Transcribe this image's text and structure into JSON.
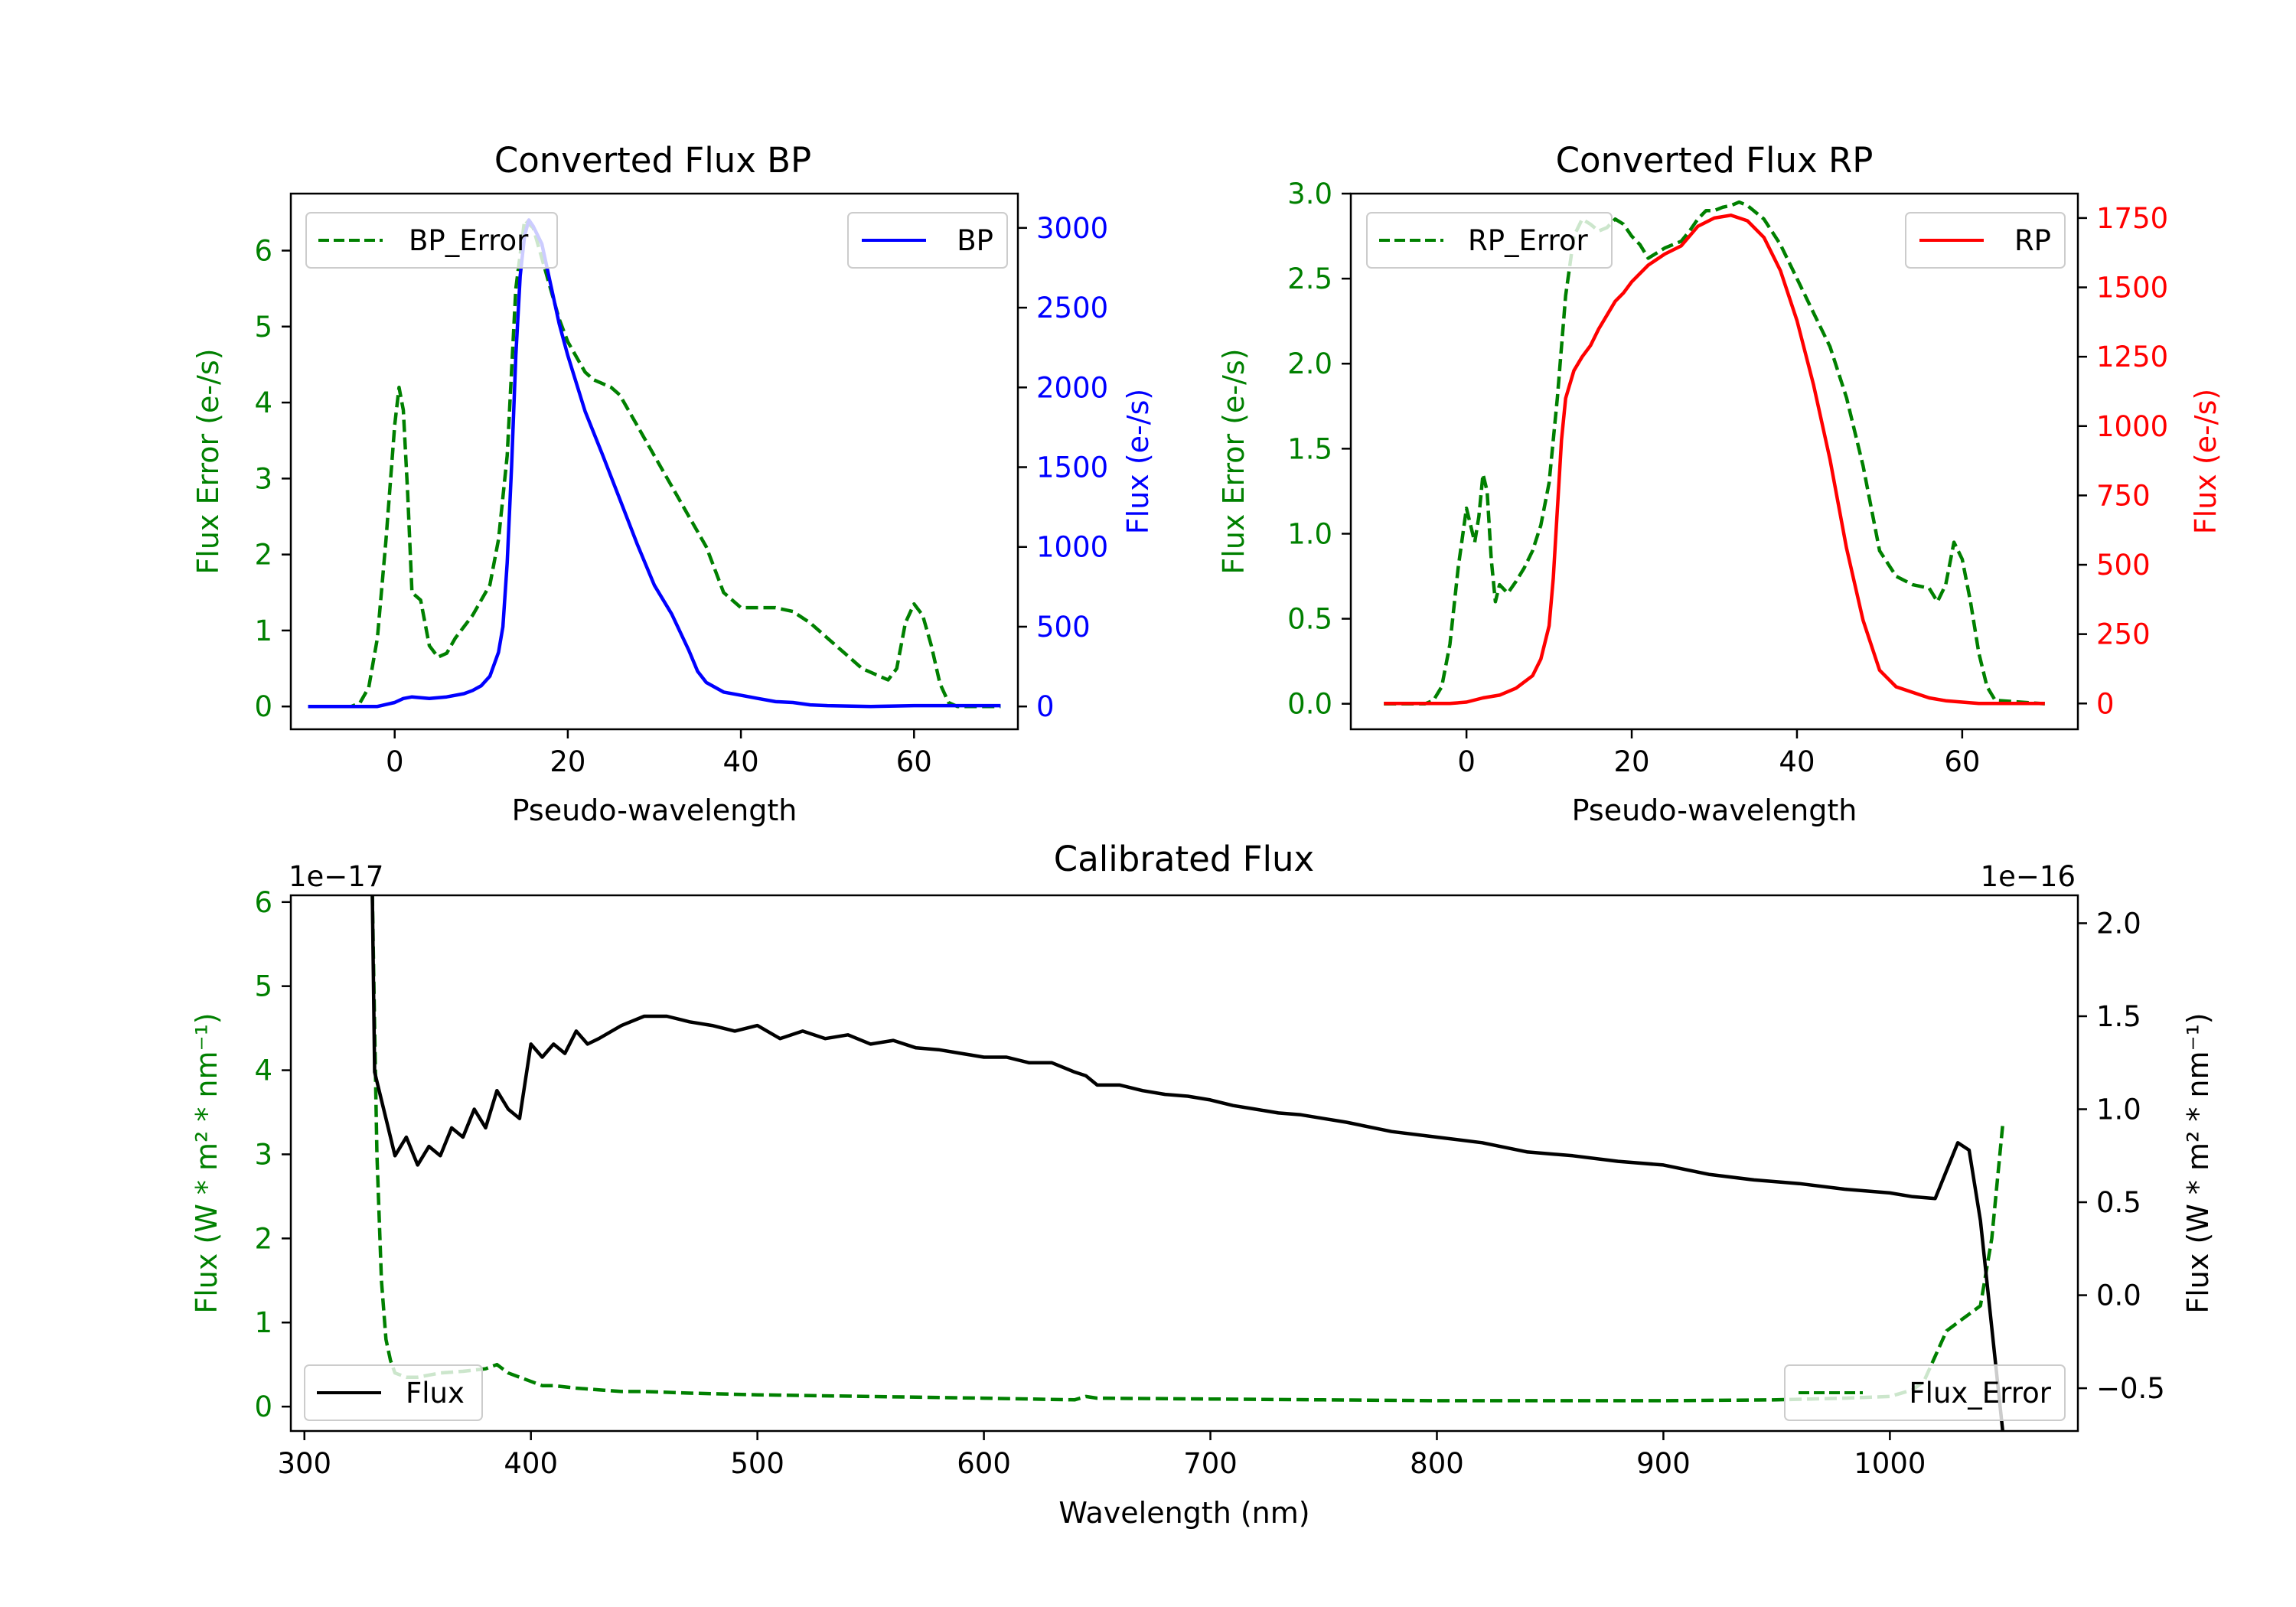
{
  "colors": {
    "green": "#008000",
    "blue": "#0000ff",
    "red": "#ff0000",
    "black": "#000000"
  },
  "chart_data": [
    {
      "type": "line",
      "title": "Converted Flux BP",
      "xlabel": "Pseudo-wavelength",
      "ylabel_left": "Flux Error (e-/s)",
      "ylabel_right": "Flux (e-/s)",
      "xlim": [
        -12,
        72
      ],
      "ylim_left": [
        -0.3,
        6.75
      ],
      "ylim_right": [
        -143,
        3215
      ],
      "x_ticks": [
        "0",
        "20",
        "40",
        "60"
      ],
      "y_left_ticks": [
        "0",
        "1",
        "2",
        "3",
        "4",
        "5",
        "6"
      ],
      "y_right_ticks": [
        "0",
        "500",
        "1000",
        "1500",
        "2000",
        "2500",
        "3000"
      ],
      "legend_left": "BP_Error",
      "legend_right": "BP",
      "series": [
        {
          "name": "BP_Error",
          "axis": "left",
          "color": "green",
          "dash": true,
          "x": [
            -10,
            -5,
            -4,
            -3,
            -2,
            -1,
            0,
            0.5,
            1,
            1.5,
            2,
            3,
            4,
            5,
            6,
            7,
            8,
            9,
            10,
            11,
            12,
            13,
            14,
            15,
            16,
            17,
            18,
            19,
            20,
            21,
            22,
            23,
            24,
            25,
            26,
            27,
            28,
            30,
            32,
            34,
            36,
            37,
            38,
            40,
            42,
            44,
            46,
            48,
            50,
            52,
            54,
            56,
            57,
            58,
            59,
            60,
            61,
            62,
            63,
            64,
            65,
            70
          ],
          "y": [
            0,
            0,
            0.05,
            0.25,
            0.9,
            2.2,
            3.7,
            4.2,
            3.9,
            2.8,
            1.5,
            1.4,
            0.8,
            0.65,
            0.7,
            0.9,
            1.05,
            1.2,
            1.4,
            1.6,
            2.2,
            3.3,
            5.5,
            6.4,
            6.3,
            5.9,
            5.5,
            5.1,
            4.8,
            4.6,
            4.4,
            4.3,
            4.25,
            4.2,
            4.1,
            3.9,
            3.7,
            3.3,
            2.9,
            2.5,
            2.1,
            1.8,
            1.5,
            1.3,
            1.3,
            1.3,
            1.25,
            1.1,
            0.9,
            0.7,
            0.5,
            0.4,
            0.35,
            0.5,
            1.1,
            1.35,
            1.2,
            0.8,
            0.3,
            0.05,
            0,
            0
          ]
        },
        {
          "name": "BP",
          "axis": "right",
          "color": "blue",
          "dash": false,
          "x": [
            -10,
            -2,
            0,
            1,
            2,
            3,
            4,
            6,
            8,
            9,
            10,
            11,
            12,
            12.5,
            13,
            13.5,
            14,
            14.5,
            15,
            15.5,
            16,
            17,
            18,
            19,
            20,
            22,
            24,
            26,
            28,
            30,
            32,
            34,
            35,
            36,
            38,
            40,
            42,
            44,
            46,
            48,
            50,
            55,
            60,
            65,
            70
          ],
          "y": [
            0,
            0,
            25,
            50,
            60,
            55,
            50,
            60,
            80,
            100,
            130,
            190,
            340,
            500,
            900,
            1500,
            2200,
            2700,
            2950,
            3050,
            3010,
            2900,
            2650,
            2400,
            2200,
            1850,
            1580,
            1300,
            1020,
            760,
            580,
            350,
            220,
            150,
            90,
            70,
            50,
            30,
            25,
            10,
            5,
            0,
            5,
            5,
            5
          ]
        }
      ]
    },
    {
      "type": "line",
      "title": "Converted Flux RP",
      "xlabel": "Pseudo-wavelength",
      "ylabel_left": "Flux Error (e-/s)",
      "ylabel_right": "Flux (e-/s)",
      "xlim": [
        -14,
        74
      ],
      "ylim_left": [
        -0.15,
        3.0
      ],
      "ylim_right": [
        -93,
        1838
      ],
      "x_ticks": [
        "0",
        "20",
        "40",
        "60"
      ],
      "y_left_ticks": [
        "0.0",
        "0.5",
        "1.0",
        "1.5",
        "2.0",
        "2.5",
        "3.0"
      ],
      "y_right_ticks": [
        "0",
        "250",
        "500",
        "750",
        "1000",
        "1250",
        "1500",
        "1750"
      ],
      "legend_left": "RP_Error",
      "legend_right": "RP",
      "series": [
        {
          "name": "RP_Error",
          "axis": "left",
          "color": "green",
          "dash": true,
          "x": [
            -10,
            -5,
            -4,
            -3,
            -2,
            -1,
            0,
            0.5,
            1,
            1.5,
            2,
            2.5,
            3,
            3.5,
            4,
            5,
            6,
            7,
            8,
            9,
            10,
            11,
            12,
            13,
            14,
            15,
            16,
            17,
            18,
            19,
            20,
            21,
            22,
            23,
            24,
            25,
            26,
            27,
            28,
            29,
            30,
            31,
            32,
            33,
            34,
            36,
            38,
            40,
            42,
            44,
            46,
            48,
            50,
            52,
            54,
            56,
            57,
            58,
            59,
            60,
            61,
            62,
            63,
            64,
            70
          ],
          "y": [
            0,
            0,
            0.02,
            0.1,
            0.35,
            0.8,
            1.15,
            1.05,
            0.95,
            1.1,
            1.35,
            1.25,
            0.85,
            0.6,
            0.7,
            0.65,
            0.72,
            0.8,
            0.9,
            1.05,
            1.3,
            1.8,
            2.4,
            2.75,
            2.85,
            2.82,
            2.78,
            2.8,
            2.85,
            2.82,
            2.75,
            2.7,
            2.62,
            2.65,
            2.68,
            2.7,
            2.72,
            2.78,
            2.85,
            2.9,
            2.9,
            2.92,
            2.93,
            2.95,
            2.93,
            2.85,
            2.7,
            2.5,
            2.3,
            2.1,
            1.8,
            1.4,
            0.9,
            0.75,
            0.7,
            0.68,
            0.6,
            0.7,
            0.95,
            0.85,
            0.6,
            0.3,
            0.1,
            0.02,
            0
          ]
        },
        {
          "name": "RP",
          "axis": "right",
          "color": "red",
          "dash": false,
          "x": [
            -10,
            -2,
            0,
            2,
            4,
            6,
            8,
            9,
            10,
            10.5,
            11,
            11.5,
            12,
            13,
            14,
            15,
            16,
            17,
            18,
            19,
            20,
            22,
            24,
            26,
            28,
            30,
            32,
            33,
            34,
            36,
            38,
            40,
            42,
            44,
            46,
            48,
            50,
            52,
            54,
            56,
            58,
            60,
            62,
            70
          ],
          "y": [
            0,
            0,
            5,
            20,
            30,
            55,
            100,
            160,
            280,
            450,
            700,
            950,
            1100,
            1200,
            1250,
            1290,
            1350,
            1400,
            1450,
            1480,
            1520,
            1580,
            1620,
            1650,
            1720,
            1750,
            1760,
            1750,
            1740,
            1680,
            1560,
            1380,
            1150,
            880,
            560,
            300,
            120,
            60,
            40,
            20,
            10,
            5,
            0,
            0
          ]
        }
      ]
    },
    {
      "type": "line",
      "title": "Calibrated Flux",
      "xlabel": "Wavelength (nm)",
      "ylabel_left": "Flux (W * m² * nm⁻¹)",
      "ylabel_right": "Flux (W * m² * nm⁻¹)",
      "xlim": [
        294,
        1083
      ],
      "ylim_left": [
        -0.29,
        6.08
      ],
      "ylim_right": [
        -0.73,
        2.15
      ],
      "offset_left": "1e−17",
      "offset_right": "1e−16",
      "x_ticks": [
        "300",
        "400",
        "500",
        "600",
        "700",
        "800",
        "900",
        "1000"
      ],
      "y_left_ticks": [
        "0",
        "1",
        "2",
        "3",
        "4",
        "5",
        "6"
      ],
      "y_right_ticks": [
        "−0.5",
        "0.0",
        "0.5",
        "1.0",
        "1.5",
        "2.0"
      ],
      "legend_left": "Flux",
      "legend_right": "Flux_Error",
      "series": [
        {
          "name": "Flux",
          "axis": "right",
          "color": "black",
          "dash": false,
          "x": [
            330,
            331,
            333,
            336,
            340,
            345,
            350,
            355,
            360,
            365,
            370,
            375,
            380,
            385,
            390,
            395,
            400,
            405,
            410,
            415,
            420,
            425,
            430,
            440,
            450,
            460,
            470,
            480,
            490,
            500,
            510,
            520,
            530,
            540,
            550,
            560,
            570,
            580,
            590,
            600,
            610,
            620,
            630,
            640,
            645,
            650,
            660,
            670,
            680,
            690,
            700,
            710,
            720,
            730,
            740,
            750,
            760,
            780,
            800,
            820,
            840,
            860,
            880,
            900,
            920,
            940,
            960,
            980,
            1000,
            1010,
            1020,
            1030,
            1035,
            1040,
            1050
          ],
          "y": [
            2.15,
            1.2,
            1.1,
            0.95,
            0.75,
            0.85,
            0.7,
            0.8,
            0.75,
            0.9,
            0.85,
            1.0,
            0.9,
            1.1,
            1.0,
            0.95,
            1.35,
            1.28,
            1.35,
            1.3,
            1.42,
            1.35,
            1.38,
            1.45,
            1.5,
            1.5,
            1.47,
            1.45,
            1.42,
            1.45,
            1.38,
            1.42,
            1.38,
            1.4,
            1.35,
            1.37,
            1.33,
            1.32,
            1.3,
            1.28,
            1.28,
            1.25,
            1.25,
            1.2,
            1.18,
            1.13,
            1.13,
            1.1,
            1.08,
            1.07,
            1.05,
            1.02,
            1.0,
            0.98,
            0.97,
            0.95,
            0.93,
            0.88,
            0.85,
            0.82,
            0.77,
            0.75,
            0.72,
            0.7,
            0.65,
            0.62,
            0.6,
            0.57,
            0.55,
            0.53,
            0.52,
            0.82,
            0.78,
            0.4,
            -0.75
          ]
        },
        {
          "name": "Flux_Error",
          "axis": "left",
          "color": "green",
          "dash": true,
          "x": [
            330,
            331,
            332,
            334,
            336,
            338,
            340,
            345,
            350,
            360,
            370,
            380,
            385,
            390,
            395,
            400,
            405,
            410,
            420,
            430,
            440,
            450,
            470,
            500,
            550,
            600,
            640,
            645,
            650,
            700,
            750,
            800,
            850,
            900,
            950,
            980,
            1000,
            1010,
            1015,
            1020,
            1025,
            1030,
            1035,
            1040,
            1045,
            1050
          ],
          "y": [
            6.1,
            4.5,
            3.0,
            1.5,
            0.8,
            0.55,
            0.4,
            0.35,
            0.35,
            0.4,
            0.42,
            0.45,
            0.5,
            0.4,
            0.35,
            0.3,
            0.25,
            0.25,
            0.22,
            0.2,
            0.18,
            0.18,
            0.16,
            0.14,
            0.12,
            0.1,
            0.08,
            0.12,
            0.1,
            0.09,
            0.08,
            0.07,
            0.07,
            0.07,
            0.08,
            0.1,
            0.12,
            0.2,
            0.3,
            0.6,
            0.9,
            1.0,
            1.1,
            1.2,
            2.0,
            3.4
          ]
        }
      ]
    }
  ]
}
